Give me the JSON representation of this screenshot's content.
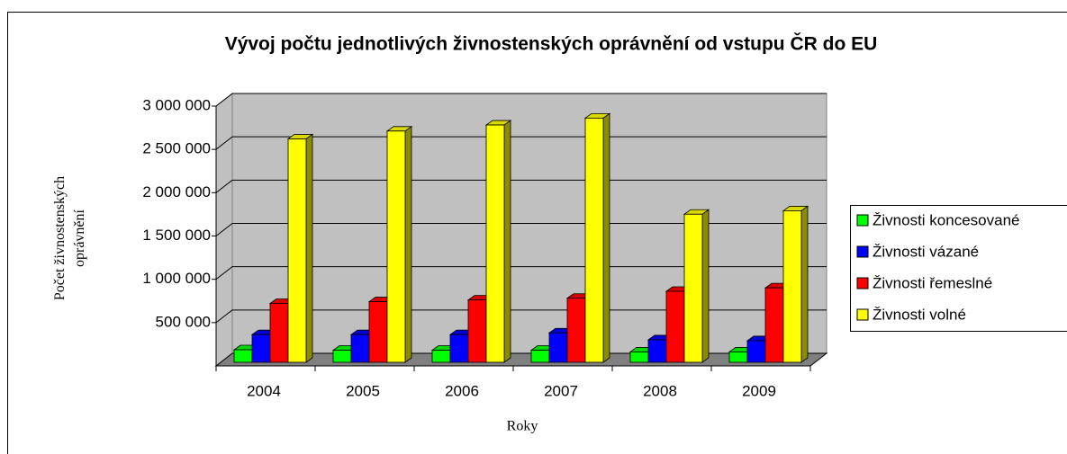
{
  "chart_data": {
    "type": "bar3d",
    "title": "Vývoj počtu jednotlivých živnostenských oprávnění od vstupu ČR do EU",
    "x_label": "Roky",
    "y_label": "Počet živnostenských oprávnění",
    "categories": [
      "2004",
      "2005",
      "2006",
      "2007",
      "2008",
      "2009"
    ],
    "series": [
      {
        "name": "Živnosti koncesované",
        "color": "#00ff00",
        "values": [
          145000,
          140000,
          140000,
          140000,
          120000,
          120000
        ]
      },
      {
        "name": "Živnosti vázané",
        "color": "#0000ff",
        "values": [
          320000,
          320000,
          320000,
          340000,
          260000,
          250000
        ]
      },
      {
        "name": "Živnosti řemeslné",
        "color": "#ff0000",
        "values": [
          680000,
          700000,
          720000,
          740000,
          820000,
          860000
        ]
      },
      {
        "name": "Živnosti volné",
        "color": "#ffff00",
        "values": [
          2580000,
          2670000,
          2740000,
          2820000,
          1710000,
          1750000
        ]
      }
    ],
    "ylim": [
      0,
      3000000
    ],
    "yticks": [
      {
        "value": 500000,
        "label": "500 000"
      },
      {
        "value": 1000000,
        "label": "1 000 000"
      },
      {
        "value": 1500000,
        "label": "1 500 000"
      },
      {
        "value": 2000000,
        "label": "2 000 000"
      },
      {
        "value": 2500000,
        "label": "2 500 000"
      },
      {
        "value": 3000000,
        "label": "3 000 000"
      }
    ],
    "grid": true,
    "legend": "right"
  }
}
